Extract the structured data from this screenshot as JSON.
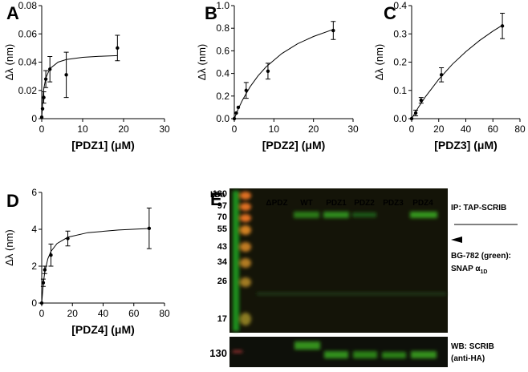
{
  "chart_data": [
    {
      "type": "scatter",
      "panel": "A",
      "xlabel": "[PDZ1] (μM)",
      "ylabel": "Δλ (nm)",
      "x": [
        0,
        0.2,
        0.5,
        1,
        2,
        6,
        18.5
      ],
      "y": [
        0.001,
        0.007,
        0.015,
        0.028,
        0.035,
        0.031,
        0.05
      ],
      "errors": [
        null,
        null,
        0.004,
        0.006,
        0.009,
        0.016,
        0.009
      ],
      "fit_x": [
        0,
        0.25,
        0.5,
        1,
        2,
        4,
        6,
        10,
        14,
        18.5
      ],
      "fit_y": [
        0,
        0.0135,
        0.0209,
        0.0288,
        0.0354,
        0.04,
        0.0418,
        0.0434,
        0.0441,
        0.0446
      ],
      "xlim": [
        0,
        30
      ],
      "xticks": [
        0,
        10,
        20,
        30
      ],
      "ylim": [
        0,
        0.08
      ],
      "yticks": [
        0,
        0.02,
        0.04,
        0.06,
        0.08
      ]
    },
    {
      "type": "scatter",
      "panel": "B",
      "xlabel": "[PDZ2] (μM)",
      "ylabel": "Δλ (nm)",
      "x": [
        0,
        0.5,
        1,
        3,
        8.5,
        25
      ],
      "y": [
        0,
        0.05,
        0.1,
        0.25,
        0.42,
        0.78
      ],
      "errors": [
        null,
        null,
        null,
        0.07,
        0.07,
        0.08
      ],
      "fit_x": [
        0,
        1,
        2,
        4,
        6,
        8,
        12,
        16,
        20,
        25
      ],
      "fit_y": [
        0,
        0.0857,
        0.16,
        0.2824,
        0.3789,
        0.4571,
        0.576,
        0.6621,
        0.7273,
        0.7895
      ],
      "xlim": [
        0,
        30
      ],
      "xticks": [
        0,
        10,
        20,
        30
      ],
      "ylim": [
        0,
        1
      ],
      "yticks": [
        {
          "value": 0,
          "label": "0.0"
        },
        {
          "value": 0.2,
          "label": "0.2"
        },
        {
          "value": 0.4,
          "label": "0.4"
        },
        {
          "value": 0.6,
          "label": "0.6"
        },
        {
          "value": 0.8,
          "label": "0.8"
        },
        {
          "value": 1,
          "label": "1.0"
        }
      ]
    },
    {
      "type": "scatter",
      "panel": "C",
      "xlabel": "[PDZ3] (μM)",
      "ylabel": "Δλ (nm)",
      "x": [
        0,
        3,
        7,
        22,
        67
      ],
      "y": [
        0,
        0.02,
        0.065,
        0.155,
        0.328
      ],
      "errors": [
        null,
        0.01,
        0.01,
        0.025,
        0.045
      ],
      "fit_x": [
        0,
        5,
        10,
        20,
        30,
        40,
        50,
        60,
        67
      ],
      "fit_y": [
        0,
        0.04,
        0.0762,
        0.1391,
        0.192,
        0.237,
        0.2759,
        0.3097,
        0.3309
      ],
      "xlim": [
        0,
        80
      ],
      "xticks": [
        0,
        20,
        40,
        60,
        80
      ],
      "ylim": [
        0,
        0.4
      ],
      "yticks": [
        {
          "value": 0,
          "label": "0.0"
        },
        {
          "value": 0.1,
          "label": "0.1"
        },
        {
          "value": 0.2,
          "label": "0.2"
        },
        {
          "value": 0.3,
          "label": "0.3"
        },
        {
          "value": 0.4,
          "label": "0.4"
        }
      ]
    },
    {
      "type": "scatter",
      "panel": "D",
      "xlabel": "[PDZ4] (μM)",
      "ylabel": "Δλ (nm)",
      "x": [
        0,
        1,
        2,
        6,
        17,
        70
      ],
      "y": [
        0,
        1.1,
        1.8,
        2.6,
        3.5,
        4.05
      ],
      "errors": [
        null,
        0.2,
        0.2,
        0.6,
        0.4,
        1.1
      ],
      "fit_x": [
        0,
        1,
        2,
        4,
        6,
        10,
        17,
        30,
        50,
        70
      ],
      "fit_y": [
        0,
        1.05,
        1.68,
        2.4,
        2.8,
        3.2308,
        3.57,
        3.818,
        3.962,
        4.045
      ],
      "xlim": [
        0,
        80
      ],
      "xticks": [
        0,
        20,
        40,
        60,
        80
      ],
      "ylim": [
        0,
        6
      ],
      "yticks": [
        0,
        2,
        4,
        6
      ]
    }
  ],
  "gel": {
    "panel": "E",
    "unit": "kDa",
    "markers": [
      "130",
      "97",
      "70",
      "55",
      "43",
      "34",
      "26",
      "17"
    ],
    "lanes": [
      "ΔPDZ",
      "WT",
      "PDZ1",
      "PDZ2",
      "PDZ3",
      "PDZ4"
    ],
    "ip_label": "IP: TAP-SCRIB",
    "stain_label": "BG-782 (green):",
    "snap_label": "SNAP α",
    "snap_sub": "1D",
    "wb_label": "WB: SCRIB",
    "wb_sub": "(anti-HA)",
    "wb_marker": "130"
  }
}
